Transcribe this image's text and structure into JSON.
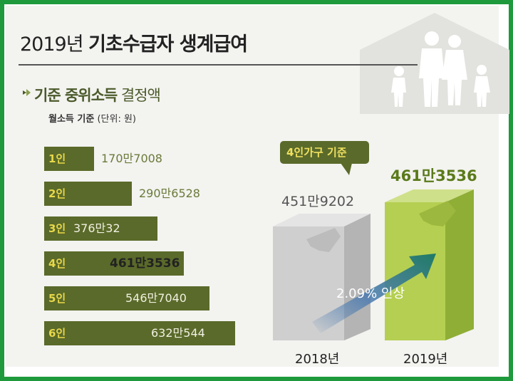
{
  "title_light": "2019년",
  "title_bold": "기초수급자 생계급여",
  "subtitle_bold": "기준 중위소득",
  "subtitle_light": "결정액",
  "unit_bold": "월소득 기준",
  "unit_light": "(단위: 원)",
  "colors": {
    "bar": "#5a6a2a",
    "bar_label": "#e8d84a",
    "frame": "#1e9a3c",
    "box2018": "#c9c9c9",
    "box2019": "#a9c24a"
  },
  "chart_data": [
    {
      "type": "bar",
      "orientation": "horizontal",
      "categories": [
        "1인",
        "2인",
        "3인",
        "4인",
        "5인",
        "6인"
      ],
      "values": [
        1707008,
        2906528,
        3760032,
        4613536,
        5467040,
        6320544
      ],
      "value_labels": [
        "170만7008",
        "290만6528",
        "376만32",
        "461만3536",
        "546만7040",
        "632만544"
      ],
      "highlight_index": 3
    },
    {
      "type": "bar",
      "categories": [
        "2018년",
        "2019년"
      ],
      "values": [
        4519202,
        4613536
      ],
      "value_labels": [
        "451만9202",
        "461만3536"
      ],
      "annotation_badge": "4인가구 기준",
      "annotation_arrow": "2.09% 인상"
    }
  ]
}
